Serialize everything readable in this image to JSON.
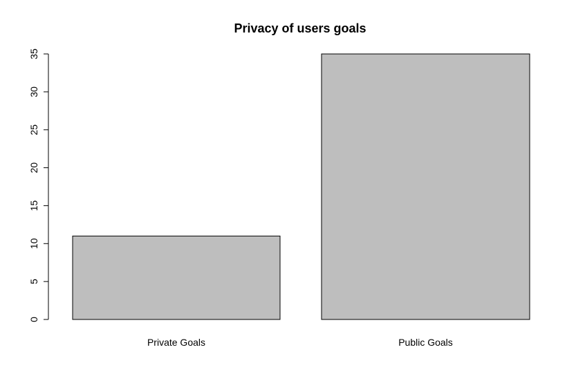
{
  "chart_data": {
    "type": "bar",
    "title": "Privacy of users goals",
    "xlabel": "",
    "ylabel": "",
    "categories": [
      "Private Goals",
      "Public Goals"
    ],
    "values": [
      11,
      35
    ],
    "ylim": [
      0,
      35
    ],
    "yticks": [
      0,
      5,
      10,
      15,
      20,
      25,
      30,
      35
    ],
    "grid": false,
    "bar_color": "#bebebe",
    "edge_color": "#000000"
  }
}
